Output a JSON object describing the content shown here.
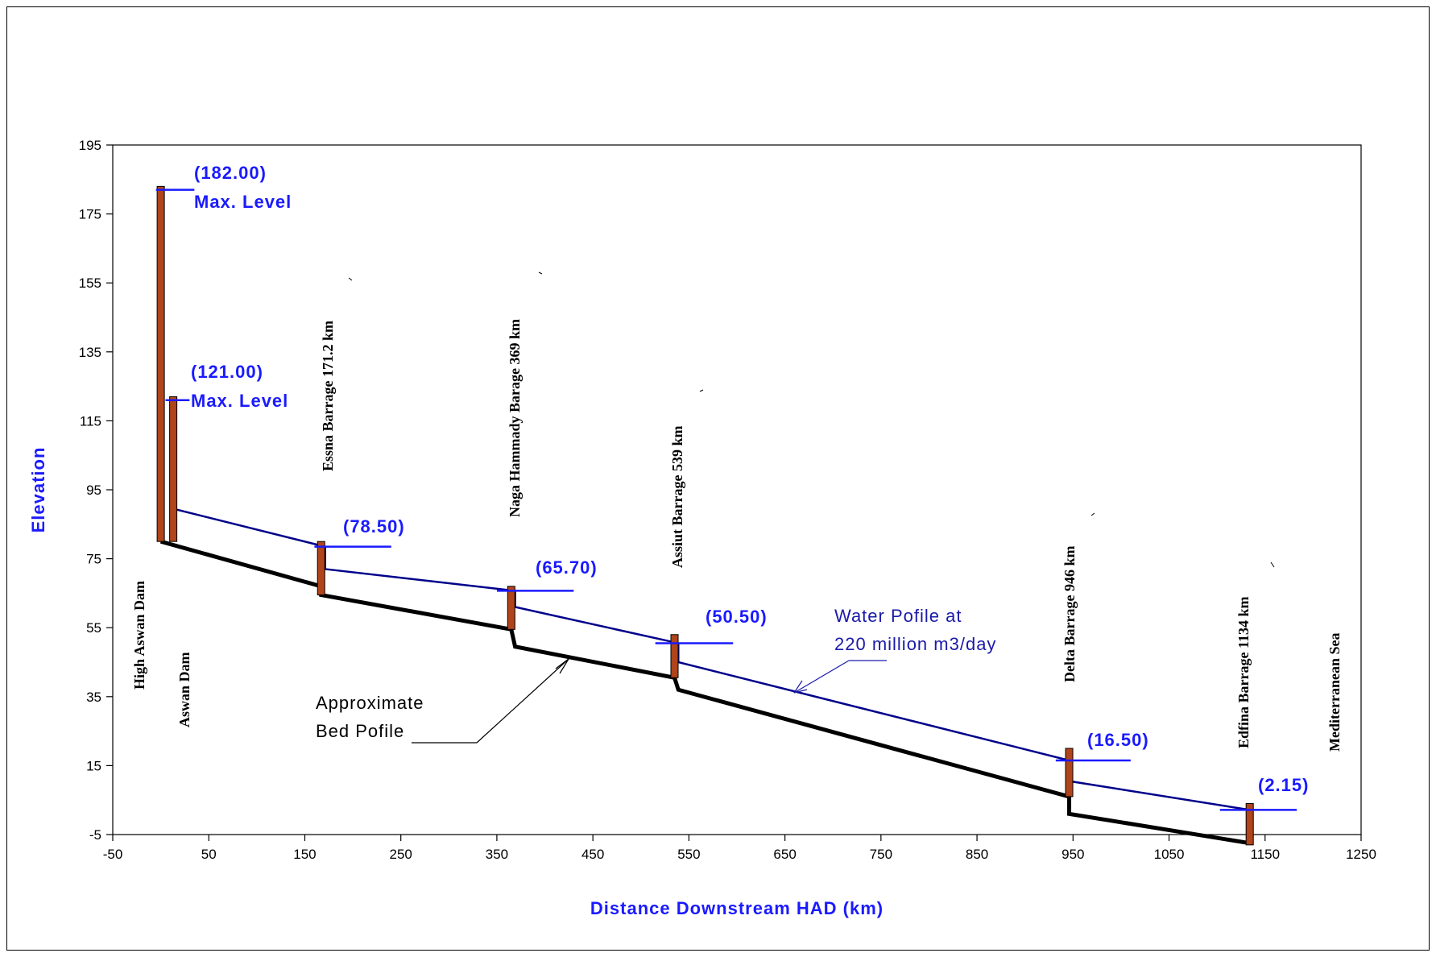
{
  "chart_data": {
    "type": "line",
    "xlabel": "Distance Downstream HAD (km)",
    "ylabel": "Elevation",
    "xlim": [
      -50,
      1250
    ],
    "ylim": [
      -5,
      195
    ],
    "x_ticks": [
      -50,
      50,
      150,
      250,
      350,
      450,
      550,
      650,
      750,
      850,
      950,
      1050,
      1150,
      1250
    ],
    "y_ticks": [
      195,
      175,
      155,
      135,
      115,
      95,
      75,
      55,
      35,
      15,
      -5
    ],
    "grid": false,
    "series": [
      {
        "name": "Water Pofile at 220 million m3/day",
        "color": "#00008b",
        "x": [
          13,
          171.2,
          171.2,
          369,
          369,
          539,
          539,
          946,
          946,
          1134
        ],
        "y": [
          89.5,
          78.5,
          72,
          65.7,
          61,
          50.5,
          45,
          16.5,
          10.5,
          2.15
        ]
      },
      {
        "name": "Approximate Bed Pofile",
        "color": "#000000",
        "x": [
          0,
          167,
          167,
          365,
          369,
          535,
          539,
          946,
          946,
          1134
        ],
        "y": [
          80,
          67,
          64.5,
          54.5,
          49.5,
          40.5,
          37,
          6,
          1,
          -7.5
        ]
      }
    ],
    "structures": [
      {
        "label": "High Aswan Dam",
        "x": 0,
        "top": 183,
        "bottom": 80
      },
      {
        "label": "Aswan Dam",
        "x": 13,
        "top": 122,
        "bottom": 80
      },
      {
        "label": "Essna Barrage  171.2 km",
        "x": 167,
        "top": 80,
        "bottom": 64.5
      },
      {
        "label": "Naga Hammady Barage  369 km",
        "x": 365,
        "top": 67,
        "bottom": 54.5
      },
      {
        "label": "Assiut Barrage  539 km",
        "x": 535,
        "top": 53,
        "bottom": 40.5
      },
      {
        "label": "Delta Barrage  946 km",
        "x": 946,
        "top": 20,
        "bottom": 6
      },
      {
        "label": "Edfina Barrage  1134 km",
        "x": 1134,
        "top": 4,
        "bottom": -8
      }
    ],
    "levels": [
      {
        "value_label": "(182.00)",
        "extra": "Max. Level",
        "y": 182,
        "x1": -5,
        "x2": 35
      },
      {
        "value_label": "(121.00)",
        "extra": "Max. Level",
        "y": 121,
        "x1": 5,
        "x2": 30
      },
      {
        "value_label": "(78.50)",
        "y": 78.5,
        "x1": 160,
        "x2": 240
      },
      {
        "value_label": "(65.70)",
        "y": 65.7,
        "x1": 350,
        "x2": 430
      },
      {
        "value_label": "(50.50)",
        "y": 50.5,
        "x1": 515,
        "x2": 596
      },
      {
        "value_label": "(16.50)",
        "y": 16.5,
        "x1": 932,
        "x2": 1010
      },
      {
        "value_label": "(2.15)",
        "y": 2.15,
        "x1": 1103,
        "x2": 1183
      }
    ],
    "other_labels": {
      "sea": "Mediterranean Sea",
      "water_profile": [
        "Water Pofile at",
        "220 million m3/day"
      ],
      "bed_profile": [
        "Approximate",
        "Bed Pofile"
      ]
    }
  }
}
